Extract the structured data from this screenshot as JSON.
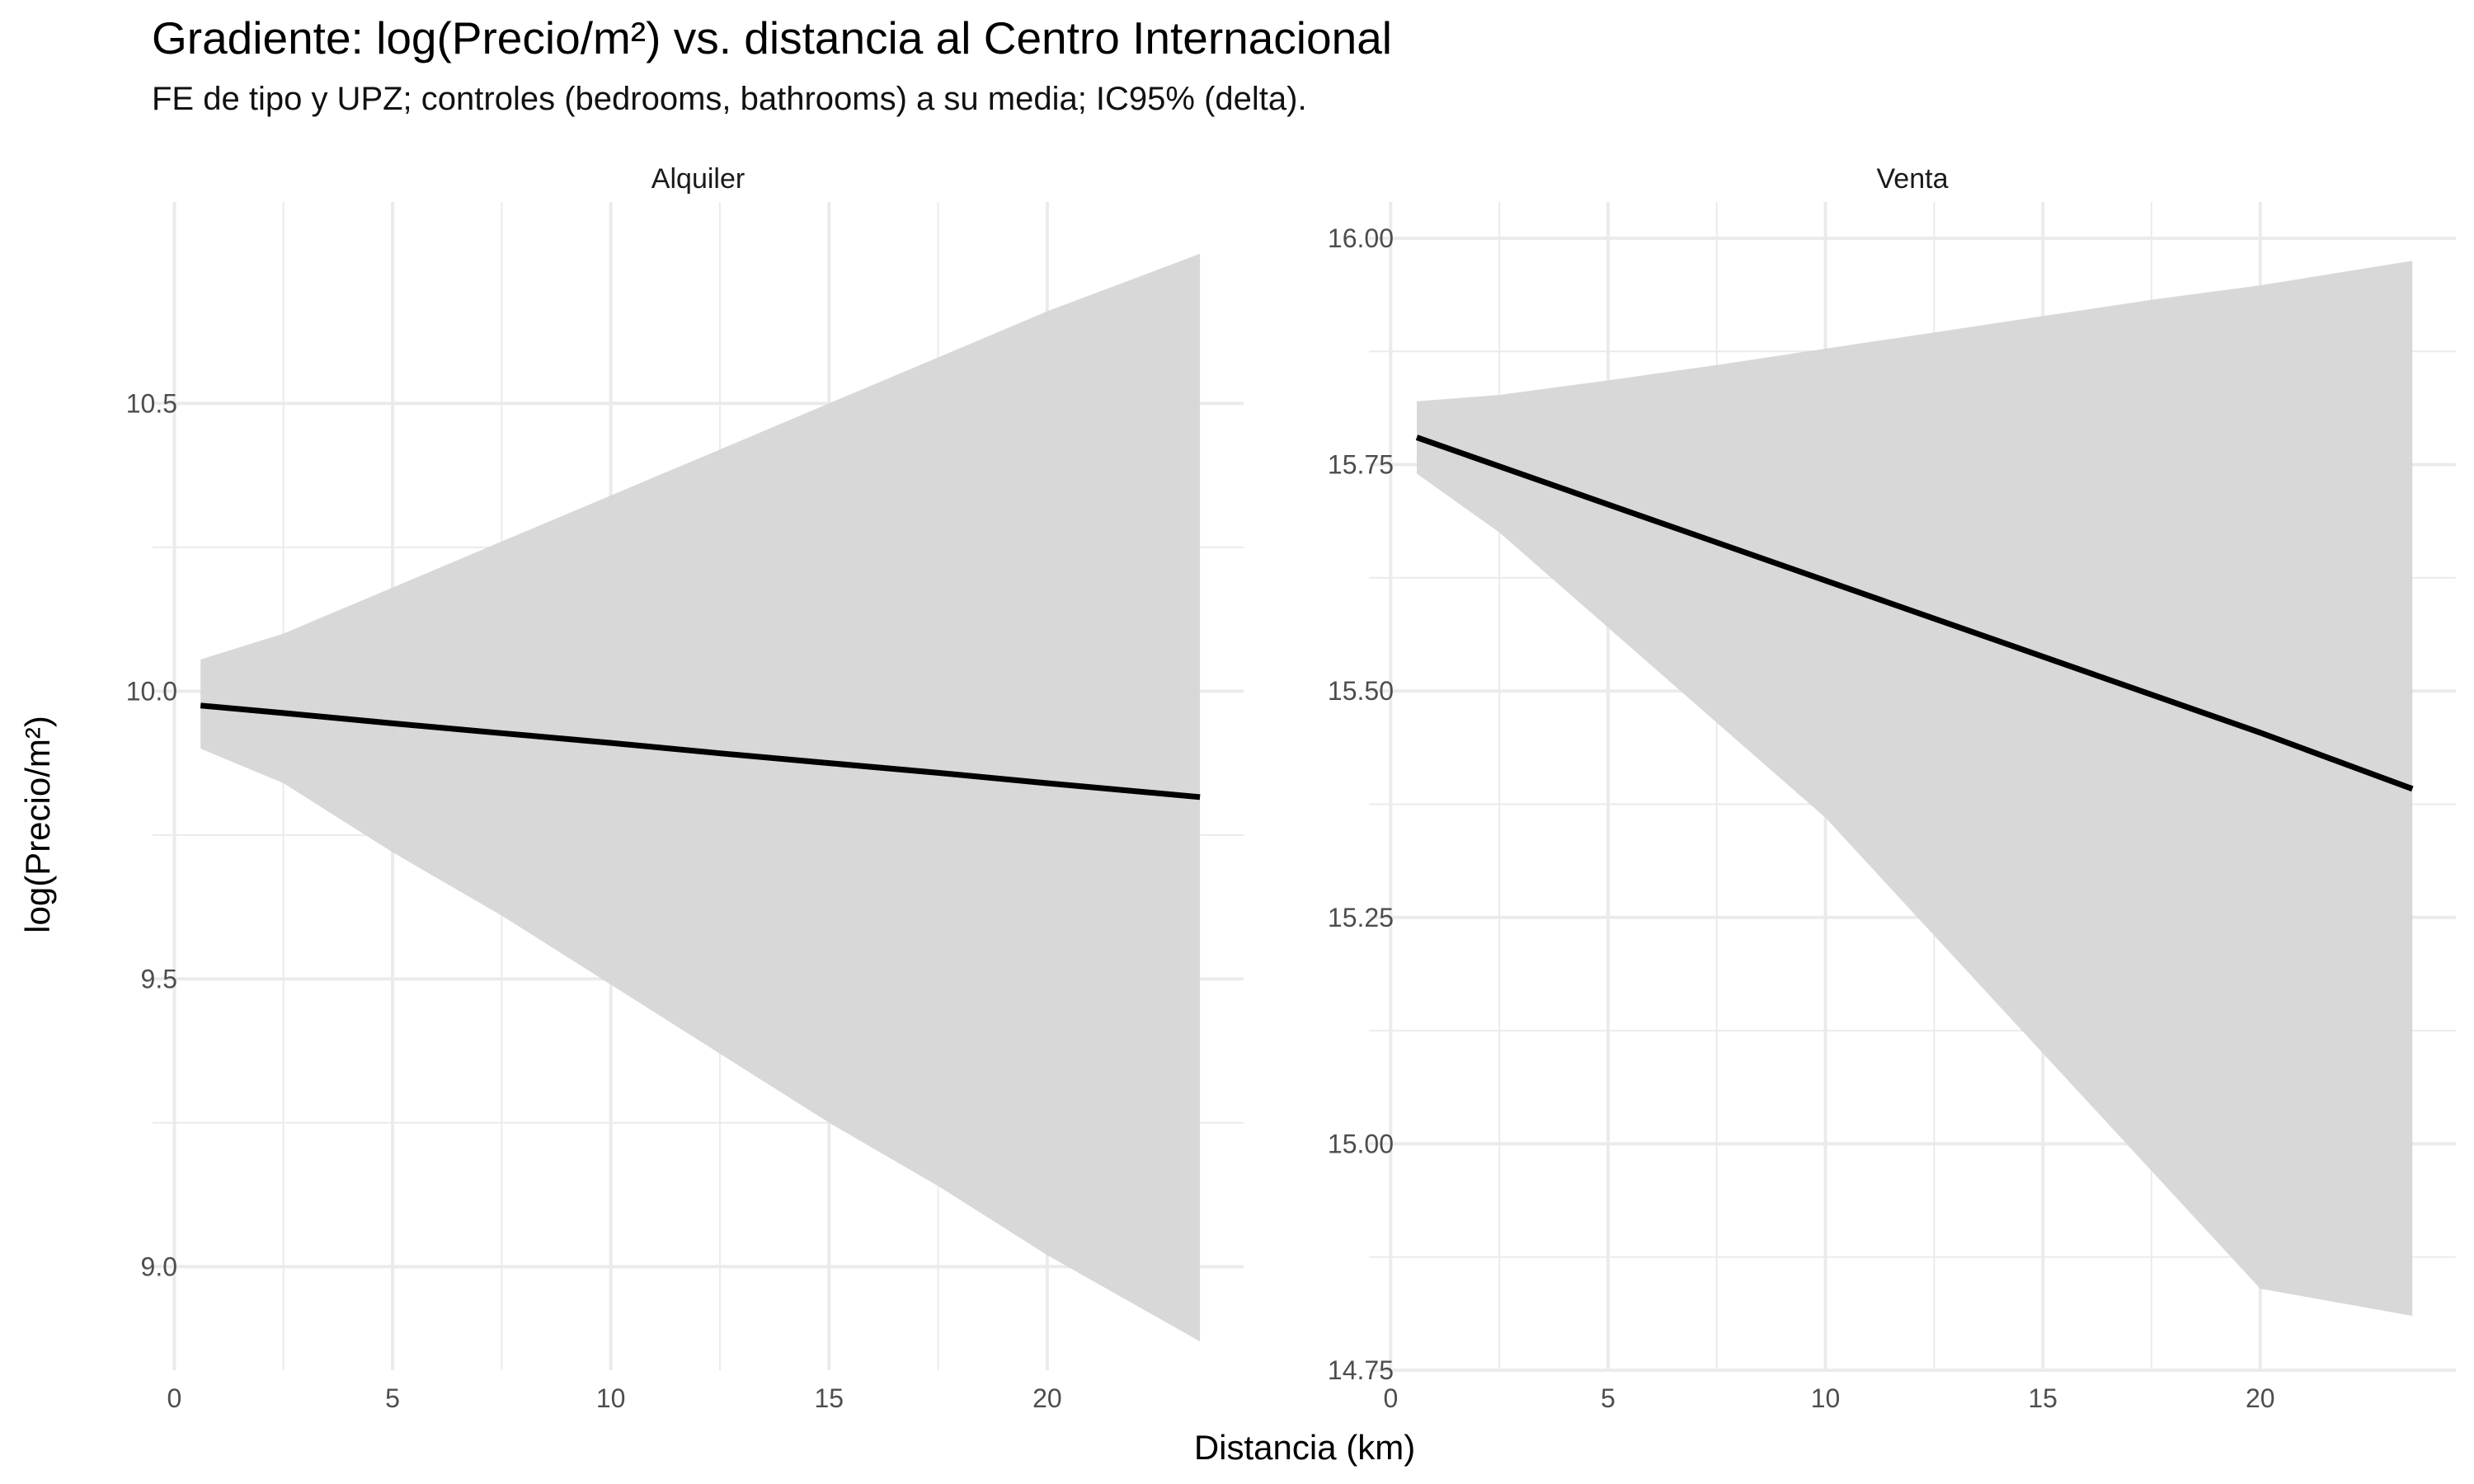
{
  "chart_data": {
    "type": "line",
    "title": "Gradiente: log(Precio/m²) vs. distancia al Centro Internacional",
    "subtitle": "FE de tipo y UPZ; controles (bedrooms, bathrooms) a su media; IC95% (delta).",
    "xlabel": "Distancia (km)",
    "ylabel": "log(Precio/m²)",
    "grid": true,
    "colors": {
      "line": "#000000",
      "ribbon": "#d6d6d6",
      "grid": "#ebebeb"
    },
    "panels": [
      {
        "name": "Alquiler",
        "xlim": [
          -0.5,
          24.5
        ],
        "ylim": [
          8.82,
          10.85
        ],
        "x_ticks": [
          0,
          5,
          10,
          15,
          20
        ],
        "x_tick_labels": [
          "0",
          "5",
          "10",
          "15",
          "20"
        ],
        "y_ticks": [
          9.0,
          9.5,
          10.0,
          10.5
        ],
        "y_tick_labels": [
          "9.0",
          "9.5",
          "10.0",
          "10.5"
        ],
        "x": [
          0.6,
          2.5,
          5,
          7.5,
          10,
          12.5,
          15,
          17.5,
          20,
          23.5
        ],
        "y": [
          9.975,
          9.962,
          9.944,
          9.927,
          9.91,
          9.892,
          9.875,
          9.858,
          9.84,
          9.816
        ],
        "ci_low": [
          9.9,
          9.84,
          9.72,
          9.61,
          9.49,
          9.37,
          9.25,
          9.14,
          9.02,
          8.87
        ],
        "ci_high": [
          10.055,
          10.1,
          10.18,
          10.26,
          10.34,
          10.42,
          10.5,
          10.58,
          10.66,
          10.76
        ]
      },
      {
        "name": "Venta",
        "xlim": [
          -0.5,
          24.5
        ],
        "ylim": [
          14.75,
          16.04
        ],
        "x_ticks": [
          0,
          5,
          10,
          15,
          20
        ],
        "x_tick_labels": [
          "0",
          "5",
          "10",
          "15",
          "20"
        ],
        "y_ticks": [
          14.75,
          15.0,
          15.25,
          15.5,
          15.75,
          16.0
        ],
        "y_tick_labels": [
          "14.75",
          "15.00",
          "15.25",
          "15.50",
          "15.75",
          "16.00"
        ],
        "x": [
          0.6,
          2.5,
          5,
          7.5,
          10,
          12.5,
          15,
          17.5,
          20,
          23.5
        ],
        "y": [
          15.78,
          15.748,
          15.706,
          15.664,
          15.622,
          15.58,
          15.538,
          15.496,
          15.454,
          15.392
        ],
        "ci_low": [
          15.74,
          15.675,
          15.57,
          15.465,
          15.36,
          15.23,
          15.1,
          14.97,
          14.84,
          14.81
        ],
        "ci_high": [
          15.82,
          15.827,
          15.843,
          15.86,
          15.878,
          15.896,
          15.914,
          15.932,
          15.948,
          15.975
        ]
      }
    ]
  }
}
